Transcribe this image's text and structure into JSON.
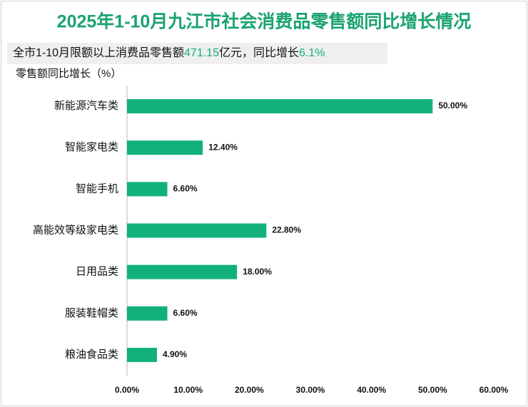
{
  "chart_data": {
    "type": "bar",
    "orientation": "horizontal",
    "title": "2025年1-10月九江市社会消费品零售额同比增长情况",
    "subtitle_parts": [
      "全市1-10月限额以上消费品零售额",
      "471.15",
      "亿元，同比增长",
      "6.1%"
    ],
    "axis_label": "零售额同比增长（%）",
    "categories": [
      "新能源汽车类",
      "智能家电类",
      "智能手机",
      "高能效等级家电类",
      "日用品类",
      "服装鞋帽类",
      "粮油食品类"
    ],
    "values": [
      50.0,
      12.4,
      6.6,
      22.8,
      18.0,
      6.6,
      4.9
    ],
    "value_labels": [
      "50.00%",
      "12.40%",
      "6.60%",
      "22.80%",
      "18.00%",
      "6.60%",
      "4.90%"
    ],
    "color": "#12b17c",
    "xlim": [
      0,
      60
    ],
    "xticks": [
      {
        "value": 0,
        "label": "0.00%"
      },
      {
        "value": 10,
        "label": "10.00%"
      },
      {
        "value": 20,
        "label": "20.00%"
      },
      {
        "value": 30,
        "label": "30.00%"
      },
      {
        "value": 40,
        "label": "40.00%"
      },
      {
        "value": 50,
        "label": "50.00%"
      },
      {
        "value": 60,
        "label": "60.00%"
      }
    ],
    "grid": false
  }
}
